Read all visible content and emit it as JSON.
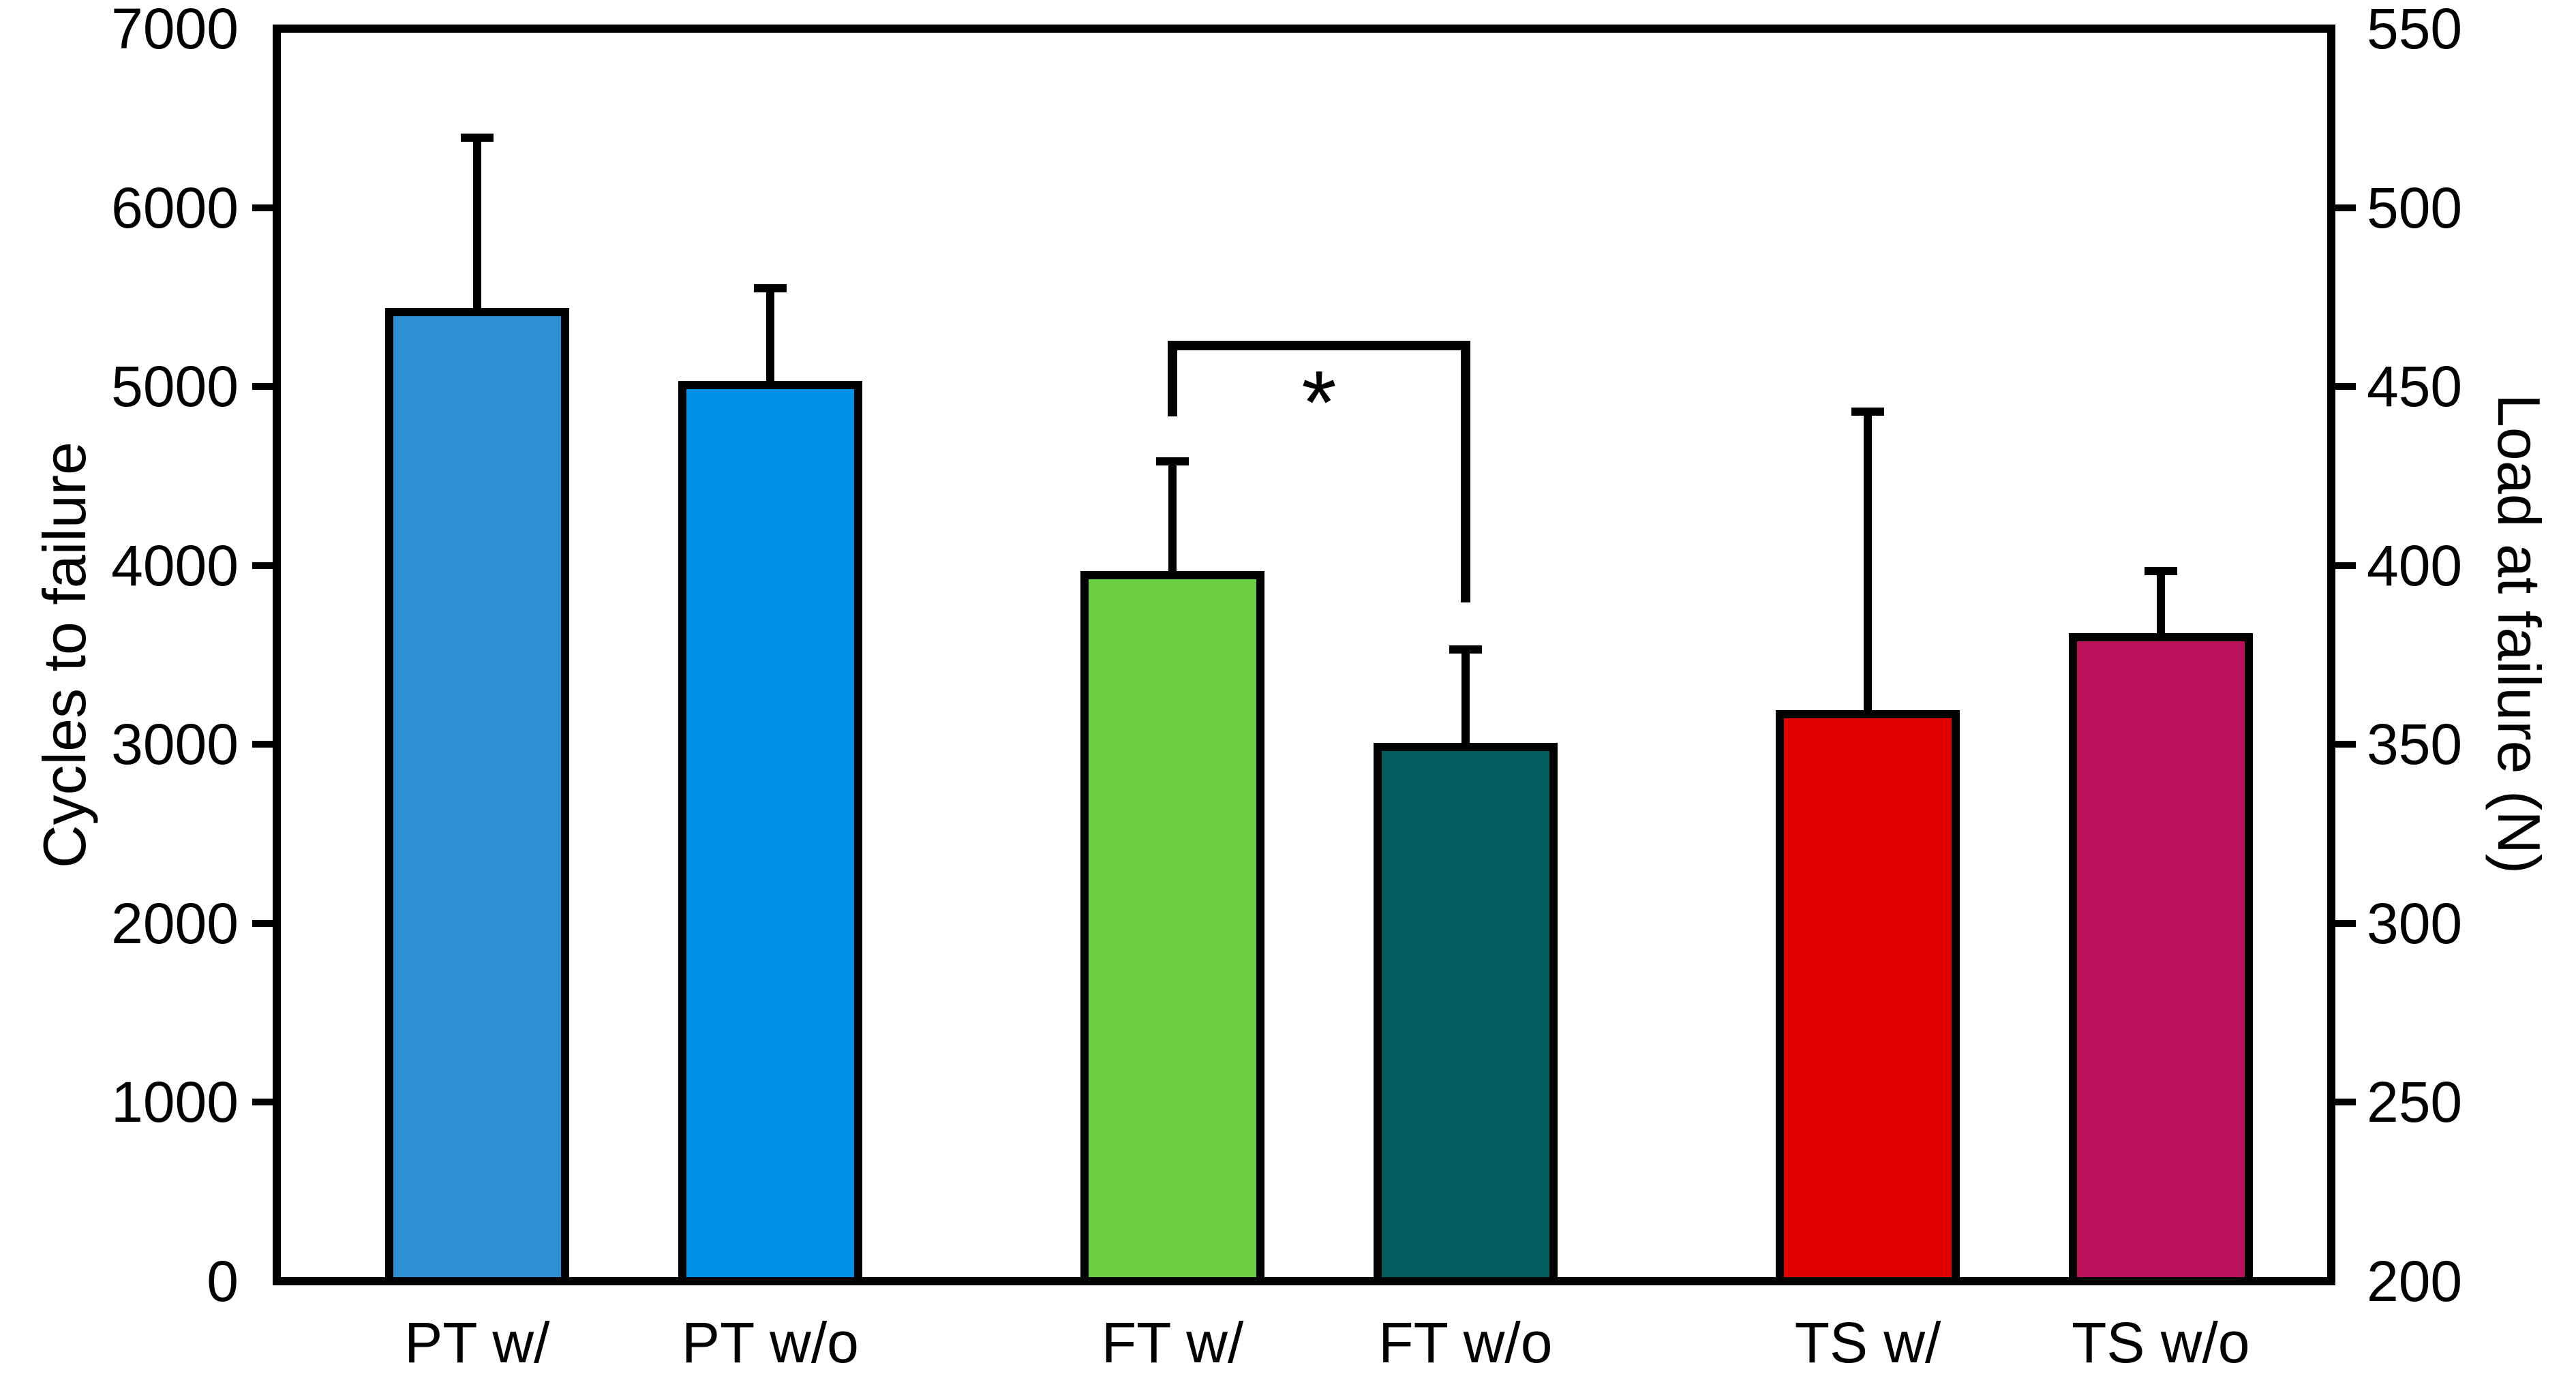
{
  "chart_data": {
    "type": "bar",
    "title": "",
    "categories": [
      "PT w/",
      "PT w/o",
      "FT w/",
      "FT w/o",
      "TS w/",
      "TS w/o"
    ],
    "values": [
      5440,
      5030,
      3970,
      3010,
      3190,
      3620
    ],
    "errors_plus": [
      950,
      520,
      610,
      520,
      1670,
      350
    ],
    "bar_colors": [
      "#2e8fd2",
      "#0091e9",
      "#6ccf43",
      "#025e5d",
      "#e00000",
      "#b9125a"
    ],
    "bar_border_color": "#000000",
    "left_axis": {
      "label": "Cycles to failure",
      "min": 0,
      "max": 7000,
      "tick_step": 1000,
      "ticks": [
        0,
        1000,
        2000,
        3000,
        4000,
        5000,
        6000,
        7000
      ]
    },
    "right_axis": {
      "label": "Load at failure (N)",
      "min": 200,
      "max": 550,
      "tick_step": 50,
      "ticks": [
        200,
        250,
        300,
        350,
        400,
        450,
        500,
        550
      ]
    },
    "significance": {
      "symbol": "*",
      "between": [
        "FT w/",
        "FT w/o"
      ],
      "bracket_top_value": 5230,
      "left_drop_bottom_value": 4860,
      "right_drop_bottom_value": 3820
    },
    "grid": false,
    "legend": false
  }
}
